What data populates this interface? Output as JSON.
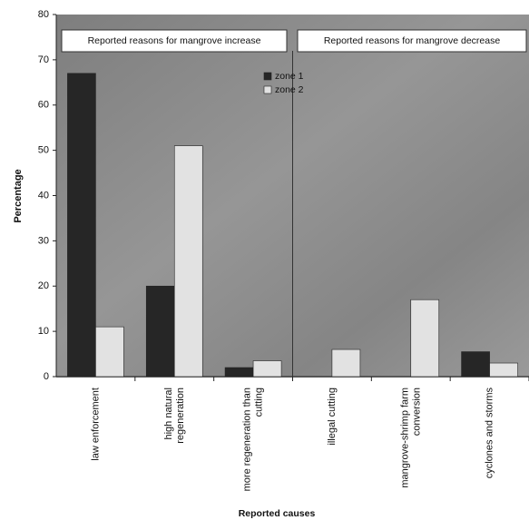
{
  "chart_data": {
    "type": "bar",
    "y_label": "Percentage",
    "x_label": "Reported causes",
    "annotations": [
      "Reported reasons for mangrove increase",
      "Reported reasons for mangrove decrease"
    ],
    "categories": [
      "law enforcement",
      "high natural regeneration",
      "more regeneration than cutting",
      "illegal cutting",
      "mangrove-shrimp farm conversion",
      "cyclones and storms"
    ],
    "series": [
      {
        "name": "zone 1",
        "color": "#262626",
        "values": [
          67,
          20,
          2,
          0,
          0,
          5.5
        ]
      },
      {
        "name": "zone 2",
        "color": "#e2e2e2",
        "values": [
          11,
          51,
          3.5,
          6,
          17,
          3
        ]
      }
    ],
    "ylim": [
      0,
      80
    ],
    "yticks": [
      0,
      10,
      20,
      30,
      40,
      50,
      60,
      70,
      80
    ]
  }
}
